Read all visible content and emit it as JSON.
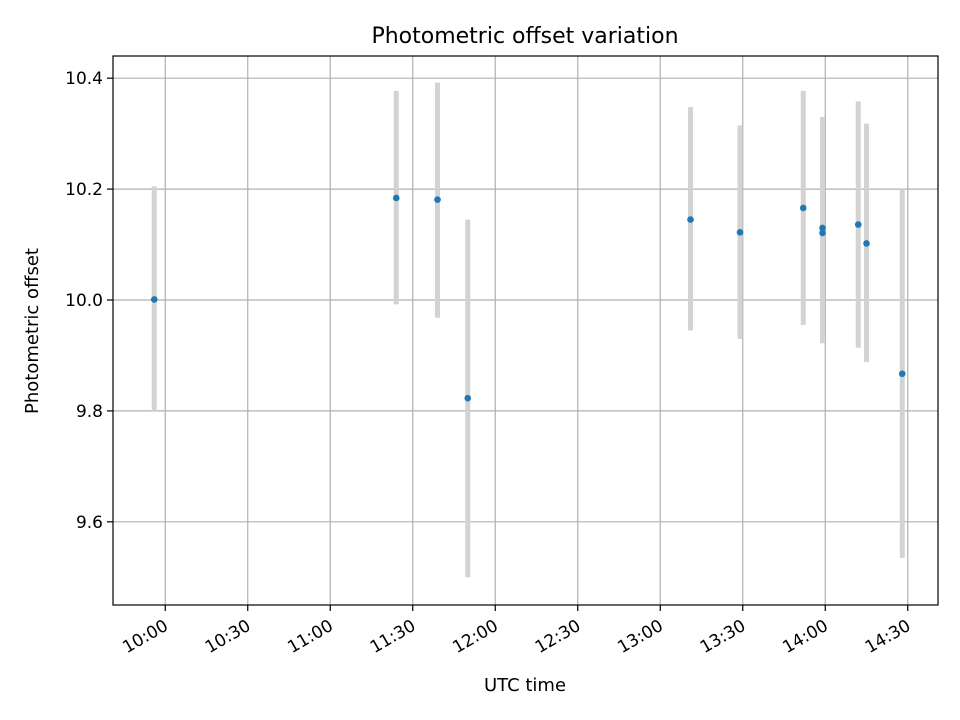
{
  "chart_data": {
    "type": "scatter",
    "title": "Photometric offset variation",
    "xlabel": "UTC time",
    "ylabel": "Photometric offset",
    "x_ticks": [
      "10:00",
      "10:30",
      "11:00",
      "11:30",
      "12:00",
      "12:30",
      "13:00",
      "13:30",
      "14:00",
      "14:30"
    ],
    "y_ticks": [
      "9.6",
      "9.8",
      "10.0",
      "10.2",
      "10.4"
    ],
    "xlim": [
      "09:41",
      "14:41"
    ],
    "ylim": [
      9.45,
      10.44
    ],
    "grid": true,
    "colors": {
      "point": "#1f77b4",
      "errorbar": "#d3d3d3"
    },
    "series": [
      {
        "points": [
          {
            "x": "09:56",
            "y": 10.001,
            "ylow": 9.8,
            "yhigh": 10.205
          },
          {
            "x": "11:24",
            "y": 10.184,
            "ylow": 9.992,
            "yhigh": 10.377
          },
          {
            "x": "11:39",
            "y": 10.181,
            "ylow": 9.968,
            "yhigh": 10.392
          },
          {
            "x": "11:50",
            "y": 9.823,
            "ylow": 9.5,
            "yhigh": 10.145
          },
          {
            "x": "13:11",
            "y": 10.145,
            "ylow": 9.945,
            "yhigh": 10.348
          },
          {
            "x": "13:29",
            "y": 10.122,
            "ylow": 9.93,
            "yhigh": 10.315
          },
          {
            "x": "13:52",
            "y": 10.166,
            "ylow": 9.955,
            "yhigh": 10.377
          },
          {
            "x": "13:59",
            "y": 10.13,
            "ylow": 9.94,
            "yhigh": 10.33
          },
          {
            "x": "13:59",
            "y": 10.121,
            "ylow": 9.922,
            "yhigh": 10.318
          },
          {
            "x": "14:12",
            "y": 10.136,
            "ylow": 9.914,
            "yhigh": 10.358
          },
          {
            "x": "14:15",
            "y": 10.102,
            "ylow": 9.888,
            "yhigh": 10.318
          },
          {
            "x": "14:28",
            "y": 9.867,
            "ylow": 9.535,
            "yhigh": 10.2
          }
        ]
      }
    ]
  }
}
